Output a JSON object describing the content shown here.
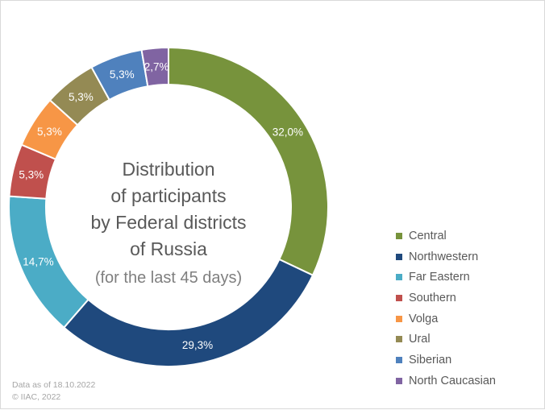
{
  "chart_data": {
    "type": "pie",
    "subtype": "donut",
    "title_lines": [
      "Distribution",
      "of participants",
      "by Federal districts",
      "of Russia"
    ],
    "subtitle": "(for the last 45 days)",
    "legend_position": "right",
    "slices": [
      {
        "name": "Central",
        "value": 32.0,
        "label": "32,0%",
        "color": "#77933C"
      },
      {
        "name": "Northwestern",
        "value": 29.3,
        "label": "29,3%",
        "color": "#1F497D"
      },
      {
        "name": "Far Eastern",
        "value": 14.7,
        "label": "14,7%",
        "color": "#4BACC6"
      },
      {
        "name": "Southern",
        "value": 5.3,
        "label": "5,3%",
        "color": "#C0504D"
      },
      {
        "name": "Volga",
        "value": 5.3,
        "label": "5,3%",
        "color": "#F79646"
      },
      {
        "name": "Ural",
        "value": 5.3,
        "label": "5,3%",
        "color": "#948A54"
      },
      {
        "name": "Siberian",
        "value": 5.3,
        "label": "5,3%",
        "color": "#4F81BD"
      },
      {
        "name": "North Caucasian",
        "value": 2.7,
        "label": "2,7%",
        "color": "#8064A2"
      }
    ]
  },
  "footnote": {
    "line1": "Data as of 18.10.2022",
    "line2": "© IIAC, 2022"
  }
}
